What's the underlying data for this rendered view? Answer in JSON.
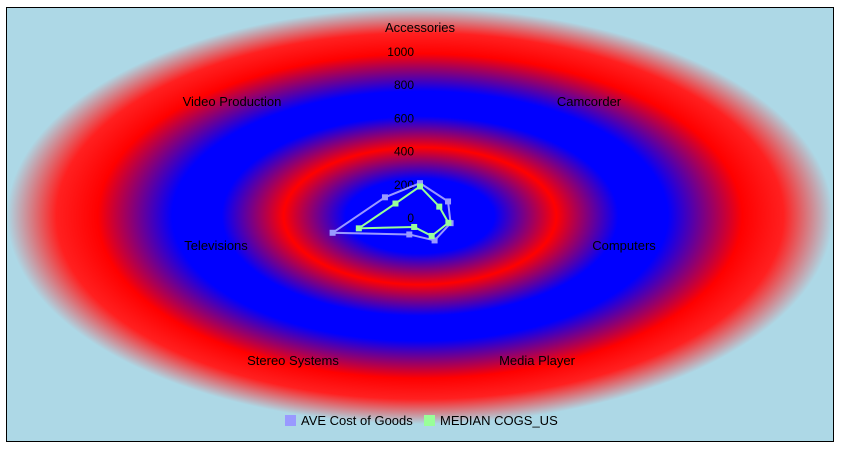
{
  "chart_data": {
    "type": "radar",
    "categories": [
      "Accessories",
      "Camcorder",
      "Computers",
      "Media Player",
      "Stereo Systems",
      "Televisions",
      "Video Production"
    ],
    "radial_ticks": [
      "0",
      "200",
      "400",
      "600",
      "800",
      "1000"
    ],
    "rmax": 1000,
    "series": [
      {
        "name": "AVE Cost of Goods",
        "values": [
          210,
          160,
          140,
          150,
          110,
          400,
          200
        ],
        "color": "#9999ff"
      },
      {
        "name": "MEDIAN COGS_US",
        "values": [
          190,
          110,
          130,
          120,
          60,
          280,
          140
        ],
        "color": "#99ff99"
      }
    ],
    "background_colors": {
      "outer": "#add8e6",
      "ring_a": "#ff0000",
      "ring_b": "#0000ff"
    },
    "legend_position": "bottom",
    "grid": false
  }
}
